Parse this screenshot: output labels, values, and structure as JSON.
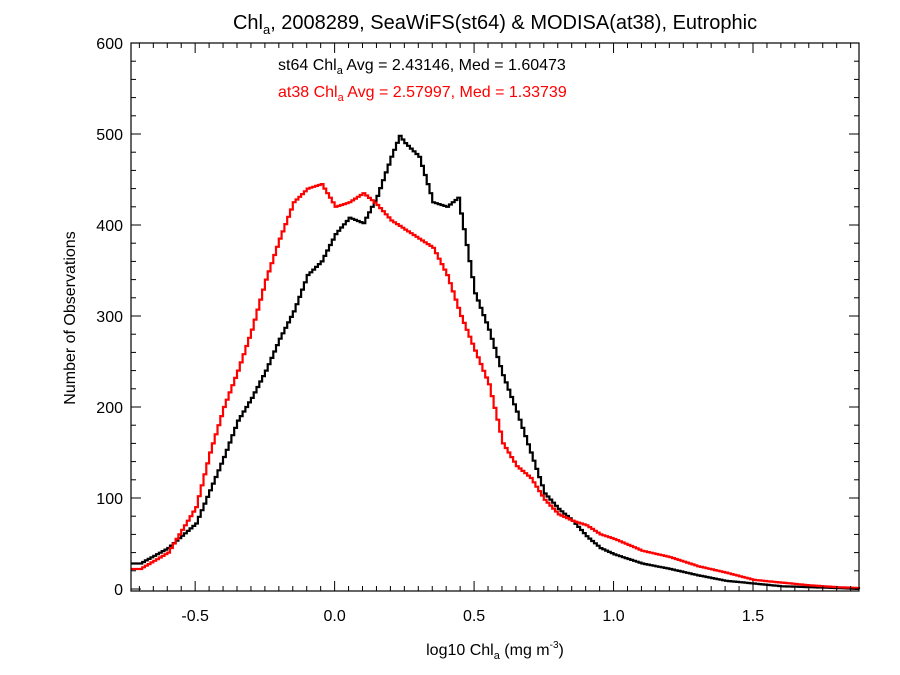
{
  "chart_data": {
    "type": "histogram-step",
    "title": {
      "pre": "Chl",
      "sub": "a",
      "post": ", 2008289, SeaWiFS(st64) & MODISA(at38), Eutrophic"
    },
    "xlabel": {
      "pre": "log10 Chl",
      "sub": "a",
      "mid": " (mg m",
      "sup": "-3",
      "post": ")"
    },
    "ylabel": "Number of Observations",
    "xlim": [
      -0.73,
      1.88
    ],
    "ylim": [
      0,
      600
    ],
    "x_ticks": [
      -0.5,
      0.0,
      0.5,
      1.0,
      1.5
    ],
    "x_tick_labels": [
      "-0.5",
      "0.0",
      "0.5",
      "1.0",
      "1.5"
    ],
    "y_ticks": [
      0,
      100,
      200,
      300,
      400,
      500,
      600
    ],
    "y_tick_labels": [
      "0",
      "100",
      "200",
      "300",
      "400",
      "500",
      "600"
    ],
    "annotations": [
      {
        "color": "#000000",
        "pre": "st64 Chl",
        "sub": "a",
        "post": " Avg = 2.43146, Med = 1.60473"
      },
      {
        "color": "#ff0000",
        "pre": "at38 Chl",
        "sub": "a",
        "post": " Avg = 2.57997, Med = 1.33739"
      }
    ],
    "series": [
      {
        "color": "#000000",
        "points": [
          [
            -0.7,
            28
          ],
          [
            -0.6,
            45
          ],
          [
            -0.5,
            72
          ],
          [
            -0.4,
            145
          ],
          [
            -0.35,
            185
          ],
          [
            -0.3,
            210
          ],
          [
            -0.25,
            240
          ],
          [
            -0.2,
            275
          ],
          [
            -0.15,
            305
          ],
          [
            -0.1,
            345
          ],
          [
            -0.05,
            360
          ],
          [
            0.0,
            390
          ],
          [
            0.05,
            408
          ],
          [
            0.1,
            402
          ],
          [
            0.15,
            432
          ],
          [
            0.2,
            475
          ],
          [
            0.23,
            498
          ],
          [
            0.25,
            490
          ],
          [
            0.3,
            475
          ],
          [
            0.35,
            425
          ],
          [
            0.4,
            420
          ],
          [
            0.44,
            430
          ],
          [
            0.47,
            378
          ],
          [
            0.5,
            325
          ],
          [
            0.55,
            285
          ],
          [
            0.6,
            235
          ],
          [
            0.65,
            195
          ],
          [
            0.7,
            150
          ],
          [
            0.75,
            105
          ],
          [
            0.8,
            88
          ],
          [
            0.85,
            75
          ],
          [
            0.9,
            58
          ],
          [
            0.95,
            45
          ],
          [
            1.0,
            38
          ],
          [
            1.1,
            28
          ],
          [
            1.2,
            22
          ],
          [
            1.3,
            15
          ],
          [
            1.4,
            9
          ],
          [
            1.5,
            6
          ],
          [
            1.6,
            3
          ],
          [
            1.7,
            2
          ],
          [
            1.8,
            1
          ],
          [
            1.88,
            0
          ]
        ]
      },
      {
        "color": "#ff0000",
        "points": [
          [
            -0.7,
            22
          ],
          [
            -0.6,
            40
          ],
          [
            -0.5,
            90
          ],
          [
            -0.45,
            150
          ],
          [
            -0.4,
            200
          ],
          [
            -0.35,
            240
          ],
          [
            -0.3,
            285
          ],
          [
            -0.25,
            340
          ],
          [
            -0.2,
            385
          ],
          [
            -0.15,
            425
          ],
          [
            -0.1,
            440
          ],
          [
            -0.05,
            445
          ],
          [
            0.0,
            420
          ],
          [
            0.05,
            425
          ],
          [
            0.1,
            435
          ],
          [
            0.15,
            422
          ],
          [
            0.2,
            405
          ],
          [
            0.25,
            395
          ],
          [
            0.3,
            385
          ],
          [
            0.35,
            375
          ],
          [
            0.4,
            345
          ],
          [
            0.45,
            300
          ],
          [
            0.5,
            262
          ],
          [
            0.55,
            225
          ],
          [
            0.6,
            160
          ],
          [
            0.65,
            135
          ],
          [
            0.7,
            122
          ],
          [
            0.75,
            98
          ],
          [
            0.8,
            82
          ],
          [
            0.85,
            75
          ],
          [
            0.9,
            70
          ],
          [
            0.95,
            60
          ],
          [
            1.0,
            55
          ],
          [
            1.1,
            42
          ],
          [
            1.2,
            35
          ],
          [
            1.3,
            25
          ],
          [
            1.4,
            18
          ],
          [
            1.5,
            10
          ],
          [
            1.6,
            7
          ],
          [
            1.7,
            4
          ],
          [
            1.8,
            2
          ],
          [
            1.88,
            1
          ]
        ]
      }
    ]
  }
}
